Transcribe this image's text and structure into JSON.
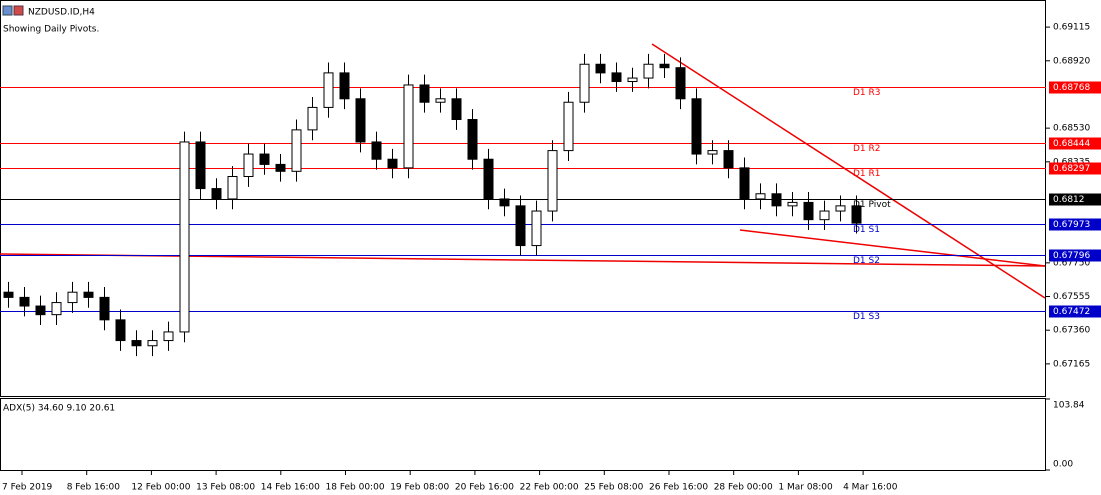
{
  "window": {
    "symbol": "NZDUSD.ID,H4",
    "subtitle": "Showing Daily Pivots."
  },
  "chart_data": {
    "type": "candlestick",
    "open": [
      0.6758,
      0.6755,
      0.675,
      0.6745,
      0.6752,
      0.6758,
      0.6755,
      0.6742,
      0.673,
      0.6727,
      0.673,
      0.6735,
      0.6845,
      0.6818,
      0.6812,
      0.6825,
      0.6838,
      0.6832,
      0.6828,
      0.6852,
      0.6865,
      0.6885,
      0.687,
      0.6845,
      0.6835,
      0.683,
      0.6878,
      0.6868,
      0.687,
      0.6858,
      0.6835,
      0.6812,
      0.6808,
      0.6785,
      0.6805,
      0.684,
      0.6868,
      0.689,
      0.6885,
      0.688,
      0.6882,
      0.689,
      0.6888,
      0.687,
      0.6838,
      0.684,
      0.683,
      0.6812,
      0.6815,
      0.6808,
      0.681,
      0.68,
      0.6805,
      0.6808
    ],
    "high": [
      0.6764,
      0.6761,
      0.6756,
      0.6758,
      0.6764,
      0.6764,
      0.6761,
      0.6748,
      0.6736,
      0.6736,
      0.6741,
      0.6851,
      0.6851,
      0.6824,
      0.6831,
      0.6844,
      0.6844,
      0.6838,
      0.6858,
      0.6871,
      0.6891,
      0.6891,
      0.6876,
      0.6851,
      0.6841,
      0.6884,
      0.6884,
      0.6876,
      0.6876,
      0.6864,
      0.6841,
      0.6818,
      0.6814,
      0.6811,
      0.6846,
      0.6874,
      0.6896,
      0.6896,
      0.6891,
      0.6888,
      0.6896,
      0.6896,
      0.6894,
      0.6876,
      0.6846,
      0.6846,
      0.6836,
      0.6821,
      0.6821,
      0.6816,
      0.6816,
      0.6811,
      0.6814,
      0.6814
    ],
    "low": [
      0.6749,
      0.6744,
      0.6739,
      0.6739,
      0.6746,
      0.6749,
      0.6736,
      0.6724,
      0.6721,
      0.6721,
      0.6724,
      0.6729,
      0.6812,
      0.6806,
      0.6806,
      0.6819,
      0.6826,
      0.6822,
      0.6822,
      0.6846,
      0.6859,
      0.6864,
      0.6839,
      0.6829,
      0.6824,
      0.6824,
      0.6862,
      0.6862,
      0.6852,
      0.6829,
      0.6806,
      0.6802,
      0.6779,
      0.6779,
      0.6799,
      0.6834,
      0.6862,
      0.6879,
      0.6874,
      0.6874,
      0.6876,
      0.6882,
      0.6864,
      0.6832,
      0.6832,
      0.6824,
      0.6806,
      0.6806,
      0.6802,
      0.6802,
      0.6794,
      0.6794,
      0.6799,
      0.6792
    ],
    "close": [
      0.6755,
      0.675,
      0.6745,
      0.6752,
      0.6758,
      0.6755,
      0.6742,
      0.673,
      0.6727,
      0.673,
      0.6735,
      0.6845,
      0.6818,
      0.6812,
      0.6825,
      0.6838,
      0.6832,
      0.6828,
      0.6852,
      0.6865,
      0.6885,
      0.687,
      0.6845,
      0.6835,
      0.683,
      0.6878,
      0.6868,
      0.687,
      0.6858,
      0.6835,
      0.6812,
      0.6808,
      0.6785,
      0.6805,
      0.684,
      0.6868,
      0.689,
      0.6885,
      0.688,
      0.6882,
      0.689,
      0.6888,
      0.687,
      0.6838,
      0.684,
      0.683,
      0.6812,
      0.6815,
      0.6808,
      0.681,
      0.68,
      0.6805,
      0.6808,
      0.6798
    ],
    "ylim": [
      0.66979,
      0.69272
    ],
    "yticks": [
      0.69115,
      {
        "value": 0.6892,
        "label": "0.68920"
      },
      {
        "value": 0.6853,
        "label": "0.68530"
      },
      0.68335,
      {
        "value": 0.6775,
        "label": "0.67750"
      },
      0.67555,
      {
        "value": 0.6736,
        "label": "0.67360"
      },
      0.67165
    ],
    "x_labels": [
      "7 Feb 2019",
      "8 Feb 16:00",
      "12 Feb 00:00",
      "13 Feb 08:00",
      "14 Feb 16:00",
      "18 Feb 00:00",
      "19 Feb 08:00",
      "20 Feb 16:00",
      "22 Feb 00:00",
      "25 Feb 08:00",
      "26 Feb 16:00",
      "28 Feb 00:00",
      "1 Mar 08:00",
      "4 Mar 16:00"
    ],
    "pivots": [
      {
        "name": "D1 R3",
        "value": 0.68768,
        "color": "#ff0000"
      },
      {
        "name": "D1 R2",
        "value": 0.68444,
        "color": "#ff0000"
      },
      {
        "name": "D1 R1",
        "value": 0.68297,
        "color": "#ff0000"
      },
      {
        "name": "D1 Pivot",
        "value": 0.6812,
        "color": "#000000"
      },
      {
        "name": "D1 S1",
        "value": 0.67973,
        "color": "#0000c8"
      },
      {
        "name": "D1 S2",
        "value": 0.67796,
        "color": "#0000c8"
      },
      {
        "name": "D1 S3",
        "value": 0.67472,
        "color": "#0000c8"
      }
    ],
    "indicator": {
      "label": "ADX(5) 34.60 9.10 20.61",
      "ylim": [
        0,
        103.84
      ],
      "yticks": [
        103.84,
        {
          "value": 0,
          "label": "0.00"
        }
      ]
    }
  }
}
